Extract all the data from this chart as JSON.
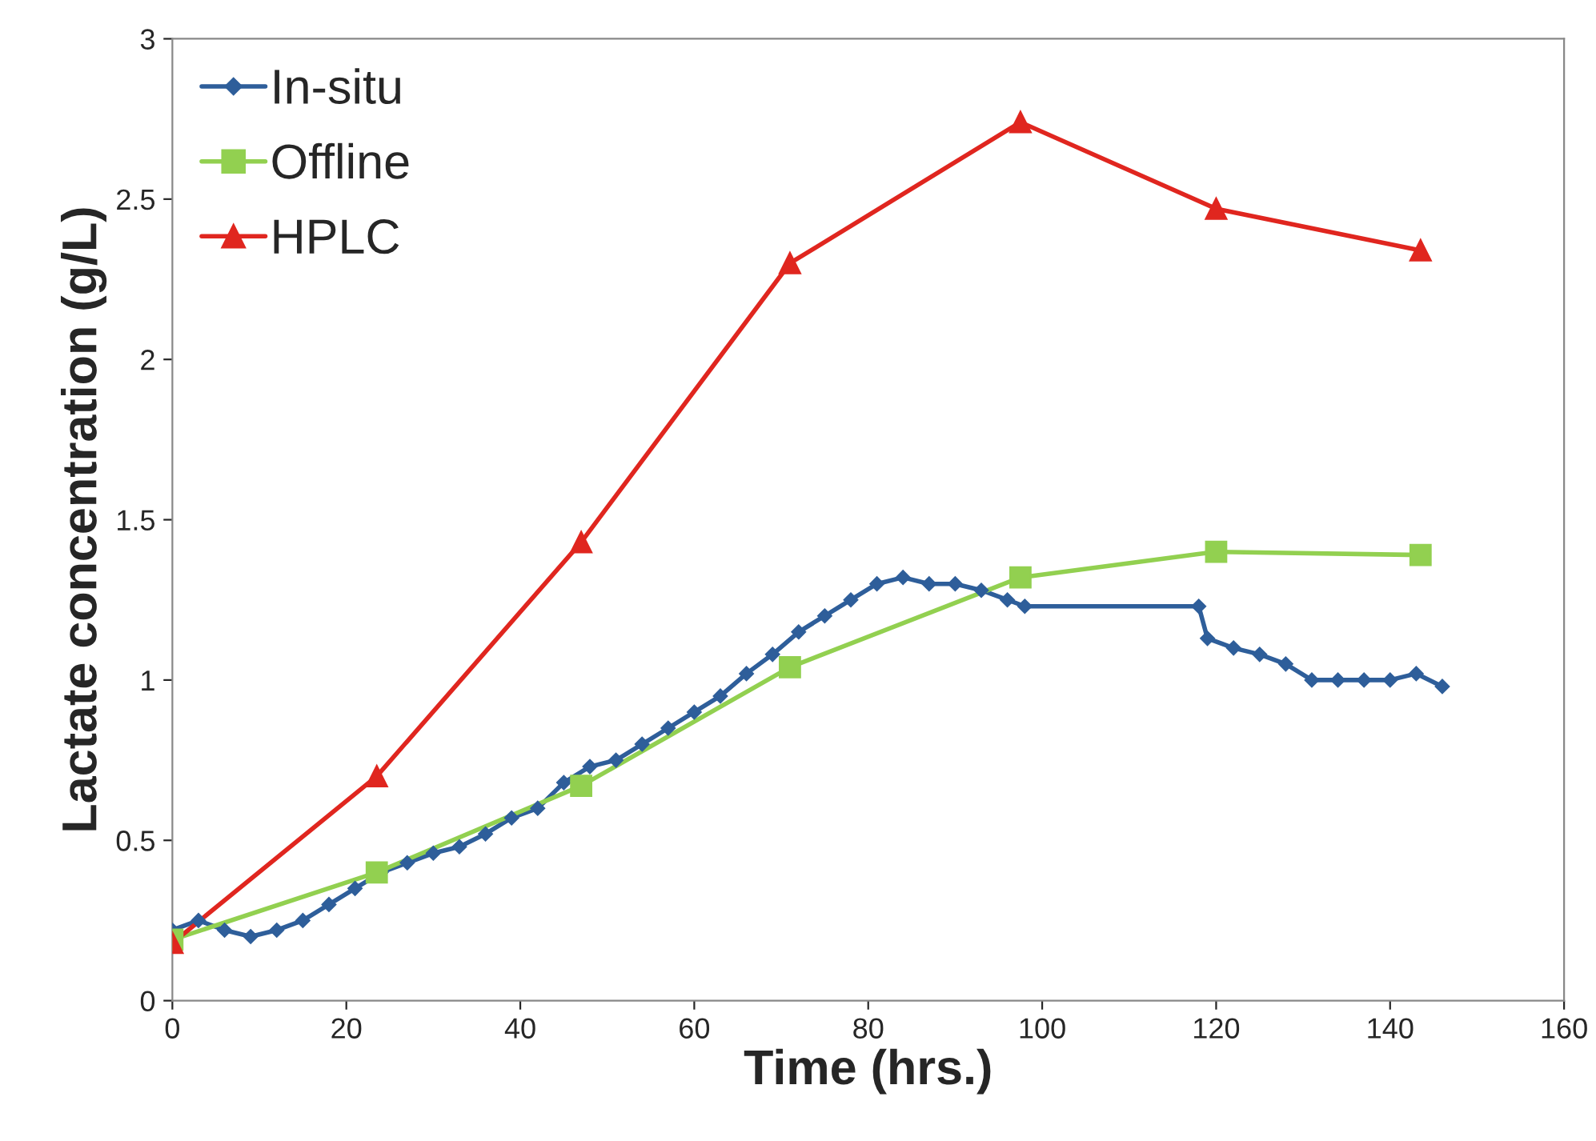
{
  "chart_data": {
    "type": "line",
    "xlabel": "Time (hrs.)",
    "ylabel": "Lactate concentration (g/L)",
    "xlim": [
      0,
      160
    ],
    "xticks": [
      0,
      20,
      40,
      60,
      80,
      100,
      120,
      140,
      160
    ],
    "ylim": [
      0,
      3
    ],
    "yticks": [
      0,
      0.5,
      1,
      1.5,
      2,
      2.5,
      3
    ],
    "grid": false,
    "legend": "top left",
    "series": [
      {
        "name": "In-situ",
        "color": "#2e5e9a",
        "marker": "diamond",
        "x": [
          0,
          3,
          6,
          9,
          12,
          15,
          18,
          21,
          24,
          27,
          30,
          33,
          36,
          39,
          42,
          45,
          48,
          51,
          54,
          57,
          60,
          63,
          66,
          69,
          72,
          75,
          78,
          81,
          84,
          87,
          90,
          93,
          96,
          98,
          118,
          119,
          122,
          125,
          128,
          131,
          134,
          137,
          140,
          143,
          146
        ],
        "values": [
          0.22,
          0.25,
          0.22,
          0.2,
          0.22,
          0.25,
          0.3,
          0.35,
          0.4,
          0.43,
          0.46,
          0.48,
          0.52,
          0.57,
          0.6,
          0.68,
          0.73,
          0.75,
          0.8,
          0.85,
          0.9,
          0.95,
          1.02,
          1.08,
          1.15,
          1.2,
          1.25,
          1.3,
          1.32,
          1.3,
          1.3,
          1.28,
          1.25,
          1.23,
          1.23,
          1.13,
          1.1,
          1.08,
          1.05,
          1.0,
          1.0,
          1.0,
          1.0,
          1.02,
          0.98
        ]
      },
      {
        "name": "Offline",
        "color": "#92d050",
        "marker": "square",
        "x": [
          0,
          23.5,
          47,
          71,
          97.5,
          120,
          143.5
        ],
        "values": [
          0.19,
          0.4,
          0.67,
          1.04,
          1.32,
          1.4,
          1.39
        ]
      },
      {
        "name": "HPLC",
        "color": "#e0261f",
        "marker": "triangle",
        "x": [
          0,
          23.5,
          47,
          71,
          97.5,
          120,
          143.5
        ],
        "values": [
          0.18,
          0.7,
          1.43,
          2.3,
          2.74,
          2.47,
          2.34
        ]
      }
    ]
  }
}
